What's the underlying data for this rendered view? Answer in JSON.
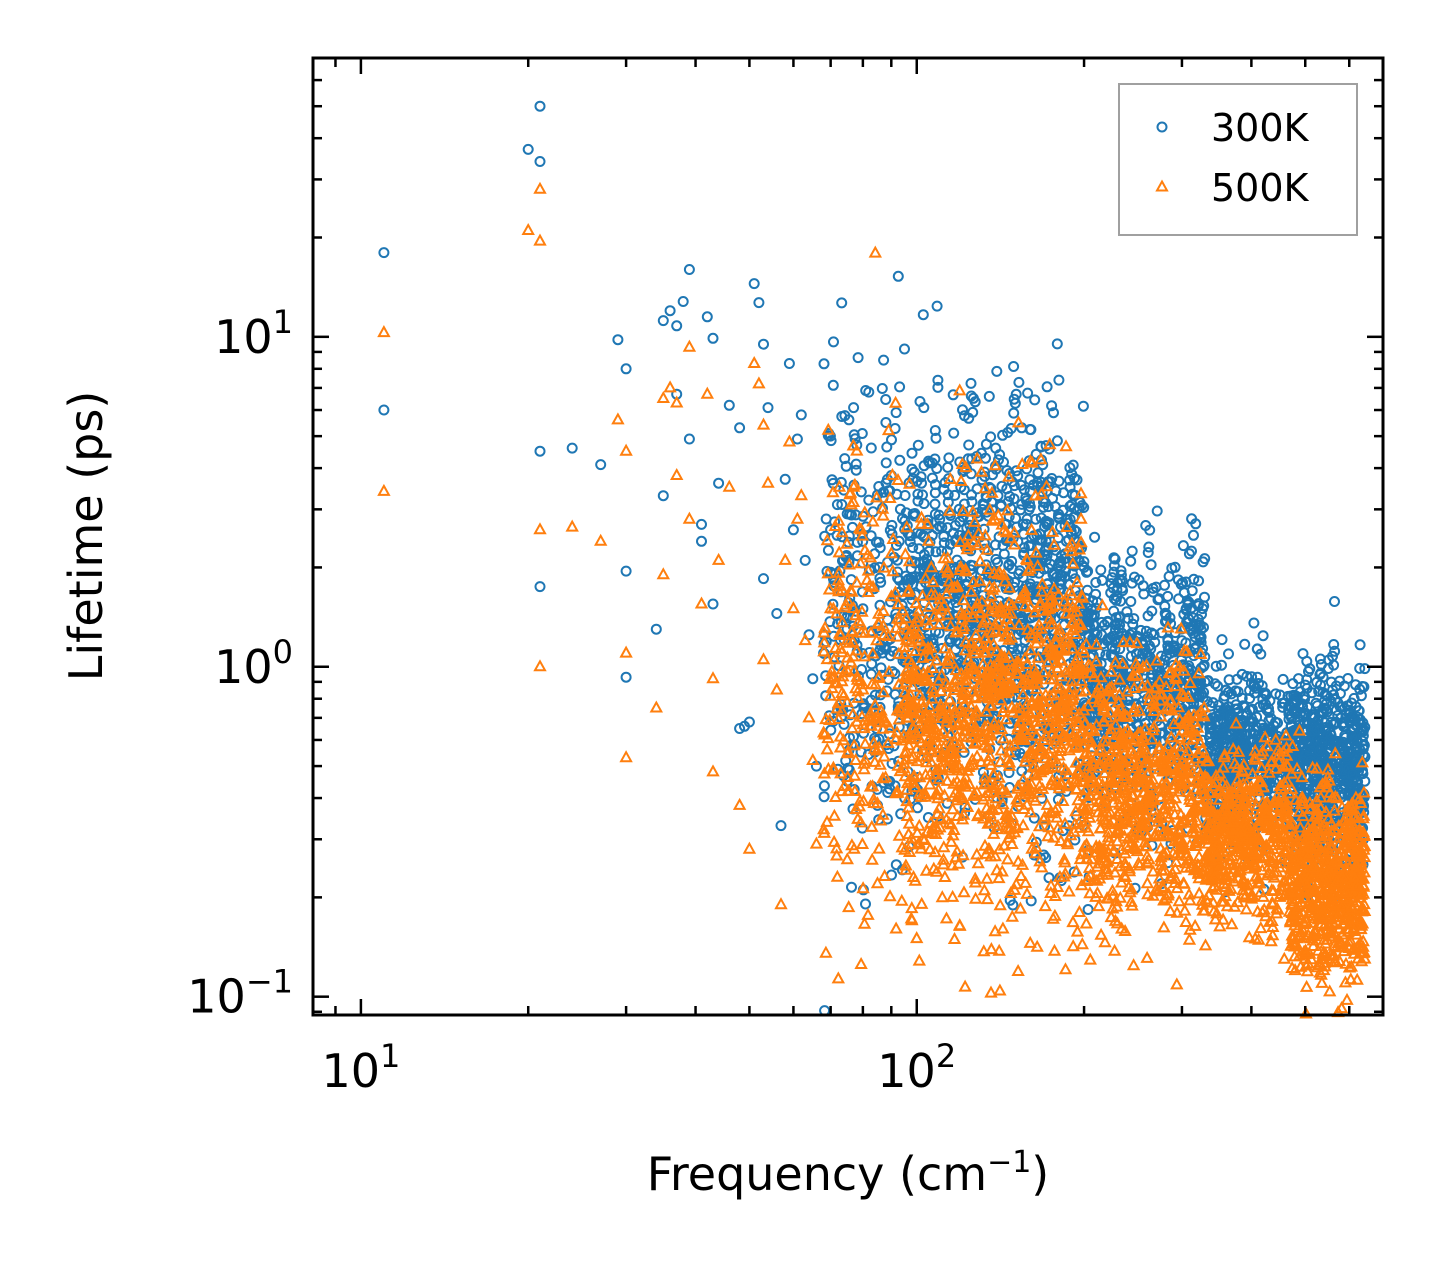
{
  "chart_data": {
    "type": "scatter",
    "xscale": "log",
    "yscale": "log",
    "xlabel": "Frequency (cm",
    "xlabel_sup": "−1",
    "xlabel_end": ")",
    "ylabel": "Lifetime (ps)",
    "xlim": [
      8.2,
      690
    ],
    "ylim": [
      0.088,
      70
    ],
    "x_ticks": [
      {
        "value": 10,
        "base": "10",
        "exp": "1"
      },
      {
        "value": 100,
        "base": "10",
        "exp": "2"
      }
    ],
    "y_ticks": [
      {
        "value": 0.1,
        "base": "10",
        "exp": "−1"
      },
      {
        "value": 1,
        "base": "10",
        "exp": "0"
      },
      {
        "value": 10,
        "base": "10",
        "exp": "1"
      }
    ],
    "legend_position": "top-right",
    "series": [
      {
        "name": "300K",
        "marker": "circle",
        "color": "#1f77b4",
        "points": [
          [
            11,
            18
          ],
          [
            11,
            6
          ],
          [
            20,
            37
          ],
          [
            21,
            50
          ],
          [
            21,
            34
          ],
          [
            21,
            4.5
          ],
          [
            21,
            1.75
          ],
          [
            24,
            4.6
          ],
          [
            27,
            4.1
          ],
          [
            29,
            9.8
          ],
          [
            30,
            8
          ],
          [
            30,
            1.95
          ],
          [
            30,
            0.93
          ],
          [
            34,
            1.3
          ],
          [
            35,
            11.2
          ],
          [
            35,
            3.3
          ],
          [
            36,
            12
          ],
          [
            37,
            10.8
          ],
          [
            37,
            6.7
          ],
          [
            38,
            12.8
          ],
          [
            39,
            16
          ],
          [
            39,
            4.9
          ],
          [
            41,
            2.7
          ],
          [
            41,
            2.4
          ],
          [
            42,
            11.5
          ],
          [
            43,
            9.9
          ],
          [
            43,
            1.55
          ],
          [
            44,
            3.6
          ],
          [
            46,
            6.2
          ],
          [
            48,
            5.3
          ],
          [
            48,
            0.65
          ],
          [
            49,
            0.66
          ],
          [
            50,
            0.68
          ],
          [
            51,
            14.5
          ],
          [
            52,
            12.7
          ],
          [
            53,
            9.5
          ],
          [
            53,
            1.85
          ],
          [
            54,
            6.1
          ],
          [
            56,
            1.45
          ],
          [
            57,
            0.33
          ],
          [
            58,
            3.7
          ],
          [
            59,
            8.3
          ],
          [
            60,
            2.6
          ],
          [
            61,
            4.9
          ],
          [
            62,
            5.8
          ],
          [
            63,
            2.1
          ],
          [
            64,
            1.25
          ],
          [
            65,
            0.92
          ],
          [
            66,
            0.5
          ],
          [
            68,
            1.1
          ],
          [
            70,
            2.6
          ],
          [
            71,
            1.8
          ],
          [
            72,
            3.1
          ],
          [
            73,
            0.75
          ],
          [
            75,
            0.45
          ],
          [
            77,
            6.1
          ],
          [
            78,
            4.7
          ],
          [
            80,
            1.5
          ],
          [
            82,
            3.2
          ],
          [
            84,
            2.2
          ],
          [
            85,
            0.38
          ],
          [
            88,
            5.5
          ],
          [
            90,
            3.8
          ],
          [
            93,
            2.4
          ],
          [
            96,
            1.2
          ],
          [
            98,
            0.42
          ],
          [
            100,
            0.9
          ],
          [
            102,
            3.6
          ],
          [
            105,
            4.2
          ],
          [
            108,
            5.2
          ],
          [
            110,
            2.8
          ],
          [
            113,
            1.6
          ],
          [
            116,
            0.55
          ],
          [
            120,
            3.5
          ],
          [
            124,
            4.7
          ],
          [
            128,
            2.6
          ],
          [
            132,
            1.5
          ],
          [
            136,
            0.75
          ],
          [
            140,
            3.3
          ],
          [
            145,
            2.7
          ],
          [
            150,
            1.8
          ],
          [
            155,
            0.95
          ],
          [
            160,
            3.4
          ],
          [
            165,
            2.3
          ],
          [
            170,
            1.3
          ],
          [
            175,
            0.65
          ],
          [
            180,
            2.9
          ],
          [
            185,
            2.2
          ],
          [
            190,
            1.5
          ],
          [
            200,
            2.0
          ],
          [
            210,
            1.8
          ],
          [
            220,
            1.2
          ],
          [
            230,
            1.0
          ],
          [
            240,
            1.4
          ],
          [
            250,
            0.95
          ],
          [
            260,
            0.8
          ],
          [
            270,
            1.0
          ],
          [
            280,
            0.75
          ],
          [
            300,
            1.2
          ],
          [
            310,
            0.8
          ],
          [
            320,
            1.1
          ],
          [
            340,
            0.7
          ],
          [
            360,
            0.85
          ],
          [
            380,
            0.6
          ],
          [
            400,
            0.7
          ],
          [
            420,
            0.55
          ],
          [
            450,
            0.6
          ],
          [
            480,
            0.55
          ],
          [
            500,
            0.88
          ],
          [
            520,
            0.7
          ],
          [
            540,
            0.6
          ],
          [
            560,
            0.85
          ],
          [
            580,
            0.7
          ],
          [
            600,
            0.58
          ],
          [
            620,
            0.5
          ],
          [
            640,
            0.45
          ]
        ],
        "dense_regions": [
          {
            "x_range": [
              68,
              95
            ],
            "y_center": 1.5,
            "log_spread": 0.7,
            "count": 260
          },
          {
            "x_range": [
              95,
              200
            ],
            "y_center": 1.4,
            "log_spread": 0.6,
            "count": 1100
          },
          {
            "x_range": [
              200,
              330
            ],
            "y_center": 0.85,
            "log_spread": 0.4,
            "count": 700
          },
          {
            "x_range": [
              330,
              470
            ],
            "y_center": 0.55,
            "log_spread": 0.25,
            "count": 500
          },
          {
            "x_range": [
              470,
              640
            ],
            "y_center": 0.5,
            "log_spread": 0.28,
            "count": 650
          }
        ]
      },
      {
        "name": "500K",
        "marker": "triangle",
        "color": "#ff7f0e",
        "points": [
          [
            11,
            10.3
          ],
          [
            11,
            3.4
          ],
          [
            20,
            21
          ],
          [
            21,
            28
          ],
          [
            21,
            19.5
          ],
          [
            21,
            2.6
          ],
          [
            21,
            1.0
          ],
          [
            24,
            2.65
          ],
          [
            27,
            2.4
          ],
          [
            29,
            5.6
          ],
          [
            30,
            4.5
          ],
          [
            30,
            1.1
          ],
          [
            30,
            0.53
          ],
          [
            34,
            0.75
          ],
          [
            35,
            6.5
          ],
          [
            35,
            1.9
          ],
          [
            36,
            7
          ],
          [
            37,
            6.3
          ],
          [
            37,
            3.8
          ],
          [
            39,
            9.3
          ],
          [
            39,
            2.8
          ],
          [
            41,
            1.55
          ],
          [
            42,
            6.7
          ],
          [
            43,
            0.92
          ],
          [
            43,
            0.48
          ],
          [
            44,
            2.1
          ],
          [
            46,
            3.5
          ],
          [
            48,
            0.38
          ],
          [
            50,
            0.28
          ],
          [
            51,
            8.3
          ],
          [
            52,
            7.2
          ],
          [
            53,
            5.4
          ],
          [
            53,
            1.05
          ],
          [
            54,
            3.6
          ],
          [
            56,
            0.85
          ],
          [
            57,
            0.19
          ],
          [
            58,
            2.1
          ],
          [
            59,
            4.8
          ],
          [
            60,
            1.5
          ],
          [
            61,
            2.8
          ],
          [
            62,
            3.3
          ],
          [
            63,
            1.2
          ],
          [
            64,
            0.7
          ],
          [
            65,
            0.52
          ],
          [
            66,
            0.29
          ],
          [
            68,
            0.63
          ],
          [
            70,
            1.5
          ],
          [
            71,
            1.05
          ],
          [
            72,
            0.23
          ],
          [
            75,
            0.26
          ],
          [
            77,
            3.5
          ],
          [
            80,
            0.85
          ],
          [
            85,
            0.22
          ],
          [
            90,
            2.2
          ],
          [
            96,
            0.7
          ],
          [
            98,
            0.17
          ],
          [
            100,
            0.15
          ],
          [
            105,
            2.4
          ],
          [
            110,
            1.6
          ],
          [
            116,
            0.2
          ],
          [
            120,
            2.0
          ],
          [
            128,
            1.5
          ],
          [
            136,
            0.35
          ],
          [
            140,
            1.9
          ],
          [
            150,
            0.21
          ],
          [
            155,
            0.25
          ],
          [
            160,
            0.145
          ],
          [
            165,
            1.3
          ],
          [
            170,
            0.35
          ],
          [
            180,
            1.65
          ],
          [
            190,
            0.9
          ],
          [
            200,
            1.1
          ],
          [
            210,
            0.2
          ],
          [
            220,
            0.7
          ],
          [
            240,
            0.3
          ],
          [
            260,
            0.22
          ],
          [
            280,
            0.42
          ],
          [
            300,
            0.28
          ],
          [
            320,
            0.25
          ],
          [
            350,
            0.3
          ],
          [
            380,
            0.24
          ],
          [
            420,
            0.2
          ],
          [
            450,
            0.2
          ],
          [
            480,
            0.17
          ],
          [
            500,
            0.13
          ],
          [
            520,
            0.35
          ],
          [
            540,
            0.12
          ],
          [
            560,
            0.4
          ],
          [
            580,
            0.28
          ],
          [
            600,
            0.14
          ],
          [
            620,
            0.3
          ],
          [
            640,
            0.13
          ]
        ],
        "dense_regions": [
          {
            "x_range": [
              68,
              95
            ],
            "y_center": 0.85,
            "log_spread": 0.7,
            "count": 260
          },
          {
            "x_range": [
              95,
              200
            ],
            "y_center": 0.7,
            "log_spread": 0.6,
            "count": 1100
          },
          {
            "x_range": [
              200,
              330
            ],
            "y_center": 0.42,
            "log_spread": 0.4,
            "count": 700
          },
          {
            "x_range": [
              330,
              470
            ],
            "y_center": 0.3,
            "log_spread": 0.25,
            "count": 500
          },
          {
            "x_range": [
              470,
              640
            ],
            "y_center": 0.22,
            "log_spread": 0.28,
            "count": 650
          }
        ]
      }
    ]
  }
}
